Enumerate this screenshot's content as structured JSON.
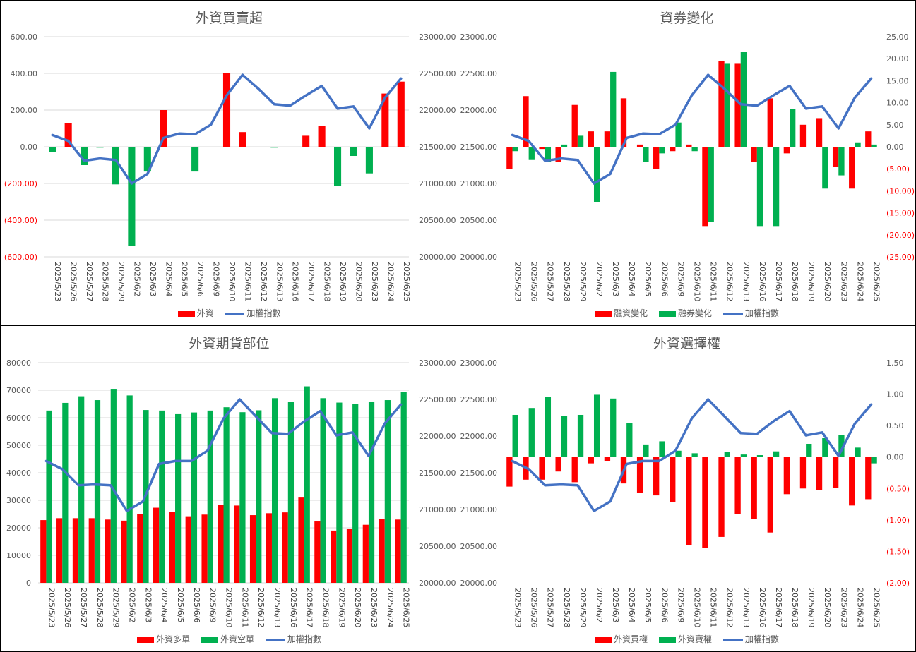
{
  "colors": {
    "red": "#FF0000",
    "green": "#00B050",
    "line": "#4472C4",
    "tick_text": "#595959",
    "grid": "#D9D9D9"
  },
  "dates": [
    "2025/5/23",
    "2025/5/26",
    "2025/5/27",
    "2025/5/28",
    "2025/5/29",
    "2025/6/2",
    "2025/6/3",
    "2025/6/4",
    "2025/6/5",
    "2025/6/6",
    "2025/6/9",
    "2025/6/10",
    "2025/6/11",
    "2025/6/12",
    "2025/6/13",
    "2025/6/16",
    "2025/6/17",
    "2025/6/18",
    "2025/6/19",
    "2025/6/20",
    "2025/6/23",
    "2025/6/24",
    "2025/6/25"
  ],
  "chart_data": [
    {
      "type": "bar",
      "title": "外資買賣超",
      "bar_mode": "posneg",
      "legend": "bottom",
      "grid": true,
      "left_axis": {
        "min": -600,
        "max": 600,
        "step": 200,
        "format": "acct",
        "ticks": [
          "(600.00)",
          "(400.00)",
          "(200.00)",
          "0.00",
          "200.00",
          "400.00",
          "600.00"
        ]
      },
      "right_axis": {
        "min": 20000,
        "max": 23000,
        "step": 500,
        "format": "fixed2",
        "ticks": [
          "20000.00",
          "20500.00",
          "21000.00",
          "21500.00",
          "22000.00",
          "22500.00",
          "23000.00"
        ]
      },
      "series": [
        {
          "name": "外資",
          "kind": "bar",
          "axis": "left",
          "values": [
            -30,
            130,
            -100,
            -5,
            -205,
            -540,
            -135,
            200,
            0,
            -135,
            0,
            400,
            80,
            0,
            -5,
            0,
            60,
            115,
            -215,
            -50,
            -145,
            290,
            355
          ]
        }
      ],
      "line": {
        "name": "加權指數",
        "axis": "right",
        "values": [
          21660,
          21580,
          21310,
          21340,
          21320,
          21000,
          21130,
          21620,
          21680,
          21670,
          21800,
          22200,
          22480,
          22290,
          22080,
          22060,
          22200,
          22330,
          22020,
          22050,
          21750,
          22170,
          22430
        ]
      }
    },
    {
      "type": "bar",
      "title": "資券變化",
      "bar_mode": "pair",
      "legend": "bottom",
      "grid": false,
      "left_axis": {
        "min": 20000,
        "max": 23000,
        "step": 500,
        "format": "fixed2",
        "ticks": [
          "20000.00",
          "20500.00",
          "21000.00",
          "21500.00",
          "22000.00",
          "22500.00",
          "23000.00"
        ]
      },
      "right_axis": {
        "min": -25,
        "max": 25,
        "step": 5,
        "format": "acct",
        "ticks": [
          "(25.00)",
          "(20.00)",
          "(15.00)",
          "(10.00)",
          "(5.00)",
          "0.00",
          "5.00",
          "10.00",
          "15.00",
          "20.00",
          "25.00"
        ]
      },
      "series": [
        {
          "name": "融資變化",
          "kind": "bar",
          "axis": "right",
          "color": "red",
          "values": [
            -5,
            11.5,
            -0.5,
            -3.5,
            9.5,
            3.5,
            3.5,
            11,
            0.5,
            -5,
            -1,
            0.5,
            -18,
            19.5,
            19,
            -3.5,
            11,
            -1.5,
            5,
            6.5,
            -4.5,
            -9.5,
            3.5
          ]
        },
        {
          "name": "融券變化",
          "kind": "bar",
          "axis": "right",
          "color": "green",
          "values": [
            -1,
            -3,
            -3.5,
            0.5,
            2.5,
            -12.5,
            17,
            0,
            -3.5,
            -1.5,
            5.5,
            -1,
            -17,
            19,
            21.5,
            -18,
            -18,
            8.5,
            0,
            -9.5,
            -6.5,
            1,
            0.5
          ]
        }
      ],
      "line": {
        "name": "加權指數",
        "axis": "left",
        "values": [
          21660,
          21580,
          21310,
          21340,
          21320,
          21000,
          21130,
          21620,
          21680,
          21670,
          21800,
          22200,
          22480,
          22290,
          22080,
          22060,
          22200,
          22330,
          22020,
          22050,
          21750,
          22170,
          22430
        ]
      }
    },
    {
      "type": "bar",
      "title": "外資期貨部位",
      "bar_mode": "pair",
      "legend": "bottom",
      "grid": true,
      "left_axis": {
        "min": 0,
        "max": 80000,
        "step": 10000,
        "format": "int",
        "ticks": [
          "0",
          "10000",
          "20000",
          "30000",
          "40000",
          "50000",
          "60000",
          "70000",
          "80000"
        ]
      },
      "right_axis": {
        "min": 20000,
        "max": 23000,
        "step": 500,
        "format": "fixed2",
        "ticks": [
          "20000.00",
          "20500.00",
          "21000.00",
          "21500.00",
          "22000.00",
          "22500.00",
          "23000.00"
        ]
      },
      "series": [
        {
          "name": "外資多單",
          "kind": "bar",
          "axis": "left",
          "color": "red",
          "values": [
            22800,
            23500,
            23500,
            23500,
            23000,
            22600,
            25000,
            27300,
            25700,
            24200,
            24800,
            28300,
            28100,
            24600,
            25300,
            25600,
            31000,
            22300,
            19000,
            19700,
            21100,
            23100,
            23000
          ]
        },
        {
          "name": "外資空單",
          "kind": "bar",
          "axis": "left",
          "color": "green",
          "values": [
            62600,
            65400,
            67800,
            66400,
            70500,
            68100,
            62800,
            62600,
            61300,
            61900,
            62600,
            63800,
            62000,
            62700,
            67100,
            65700,
            71400,
            67100,
            65500,
            65000,
            65900,
            66400,
            69300
          ]
        }
      ],
      "line": {
        "name": "加權指數",
        "axis": "right",
        "values": [
          21660,
          21550,
          21330,
          21340,
          21330,
          20980,
          21110,
          21620,
          21660,
          21660,
          21800,
          22240,
          22500,
          22270,
          22040,
          22030,
          22200,
          22340,
          22010,
          22050,
          21730,
          22170,
          22430
        ]
      }
    },
    {
      "type": "bar",
      "title": "外資選擇權",
      "bar_mode": "pair",
      "legend": "bottom",
      "grid": false,
      "left_axis": {
        "min": 20000,
        "max": 23000,
        "step": 500,
        "format": "fixed2",
        "ticks": [
          "20000.00",
          "20500.00",
          "21000.00",
          "21500.00",
          "22000.00",
          "22500.00",
          "23000.00"
        ]
      },
      "right_axis": {
        "min": -2,
        "max": 1.5,
        "step": 0.5,
        "format": "acct",
        "ticks": [
          "(2.00)",
          "(1.50)",
          "(1.00)",
          "(0.50)",
          "0.00",
          "0.50",
          "1.00",
          "1.50"
        ]
      },
      "series": [
        {
          "name": "外資買權",
          "kind": "bar",
          "axis": "right",
          "color": "red",
          "values": [
            -0.47,
            -0.36,
            -0.36,
            -0.23,
            -0.4,
            -0.1,
            -0.07,
            -0.42,
            -0.57,
            -0.61,
            -0.71,
            -1.4,
            -1.45,
            -1.27,
            -0.91,
            -0.98,
            -1.2,
            -0.59,
            -0.5,
            -0.52,
            -0.49,
            -0.77,
            -0.67
          ]
        },
        {
          "name": "外資賣權",
          "kind": "bar",
          "axis": "right",
          "color": "green",
          "values": [
            0.67,
            0.78,
            0.96,
            0.65,
            0.67,
            0.99,
            0.93,
            0.54,
            0.2,
            0.25,
            0.1,
            0.06,
            0,
            0.08,
            0.04,
            0.03,
            0.09,
            0,
            0.21,
            0.3,
            0.35,
            0.15,
            -0.1
          ]
        }
      ],
      "line": {
        "name": "加權指數",
        "axis": "left",
        "values": [
          21660,
          21550,
          21330,
          21340,
          21330,
          20980,
          21110,
          21620,
          21660,
          21660,
          21800,
          22240,
          22500,
          22270,
          22040,
          22030,
          22200,
          22340,
          22010,
          22050,
          21730,
          22170,
          22430
        ]
      }
    }
  ]
}
